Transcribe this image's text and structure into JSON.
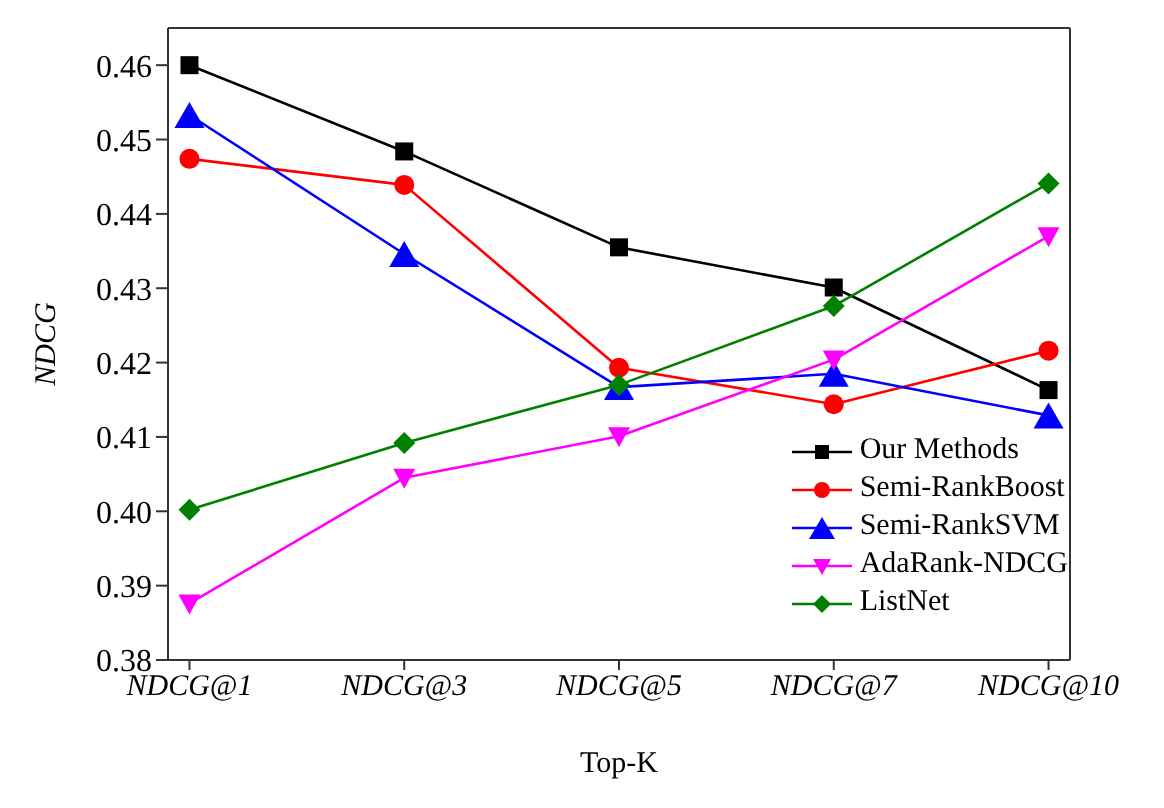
{
  "chart_data": {
    "type": "line",
    "xlabel": "Top-K",
    "ylabel": "NDCG",
    "categories": [
      "NDCG@1",
      "NDCG@3",
      "NDCG@5",
      "NDCG@7",
      "NDCG@10"
    ],
    "ylim": [
      0.38,
      0.465
    ],
    "yticks": [
      0.38,
      0.39,
      {
        "value": 0.4,
        "label": "0.40"
      },
      0.41,
      0.42,
      0.43,
      0.44,
      0.45,
      0.46
    ],
    "grid": false,
    "legend": "bottom right",
    "line_style": "solid",
    "series": [
      {
        "name": "Our Methods",
        "color": "#000000",
        "marker": "square",
        "values": [
          0.46,
          0.4484,
          0.4355,
          0.4301,
          0.4163
        ]
      },
      {
        "name": "Semi-RankBoost",
        "color": "#ff0000",
        "marker": "circle",
        "values": [
          0.4474,
          0.4439,
          0.4193,
          0.4144,
          0.4216
        ]
      },
      {
        "name": "Semi-RankSVM",
        "color": "#0000ff",
        "marker": "triangle",
        "values": [
          0.4533,
          0.4346,
          0.4167,
          0.4185,
          0.4129
        ]
      },
      {
        "name": "AdaRank-NDCG",
        "color": "#ff00ff",
        "marker": "triangle-down",
        "values": [
          0.3876,
          0.4045,
          0.4101,
          0.4204,
          0.437
        ]
      },
      {
        "name": "ListNet",
        "color": "#008000",
        "marker": "diamond",
        "values": [
          0.4002,
          0.4092,
          0.417,
          0.4276,
          0.4441
        ]
      }
    ]
  }
}
